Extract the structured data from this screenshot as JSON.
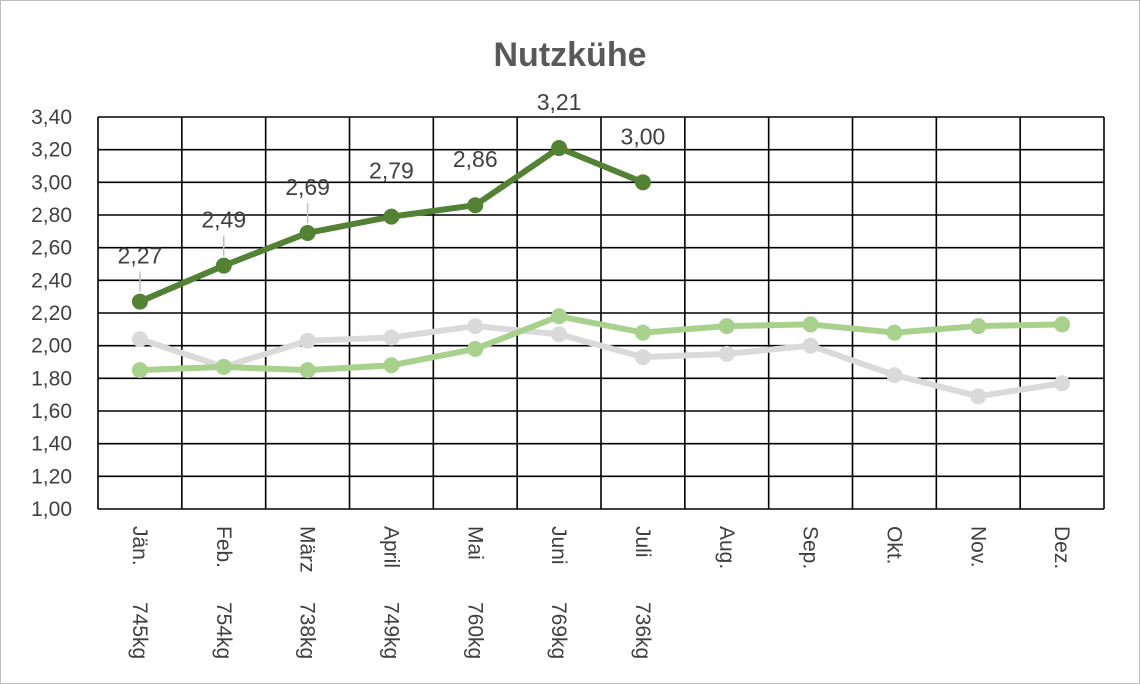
{
  "chart_data": {
    "type": "line",
    "title": "Nutzkühe",
    "xlabel": "",
    "ylabel": "",
    "ylim": [
      1.0,
      3.4
    ],
    "ytick_step": 0.2,
    "ytick_labels": [
      "1,00",
      "1,20",
      "1,40",
      "1,60",
      "1,80",
      "2,00",
      "2,20",
      "2,40",
      "2,60",
      "2,80",
      "3,00",
      "3,20",
      "3,40"
    ],
    "grid": true,
    "legend": "none",
    "categories": [
      {
        "month": "Jän.",
        "weight": "745kg"
      },
      {
        "month": "Feb.",
        "weight": "754kg"
      },
      {
        "month": "März",
        "weight": "738kg"
      },
      {
        "month": "April",
        "weight": "749kg"
      },
      {
        "month": "Mai",
        "weight": "760kg"
      },
      {
        "month": "Juni",
        "weight": "769kg"
      },
      {
        "month": "Juli",
        "weight": "736kg"
      },
      {
        "month": "Aug.",
        "weight": ""
      },
      {
        "month": "Sep.",
        "weight": ""
      },
      {
        "month": "Okt.",
        "weight": ""
      },
      {
        "month": "Nov.",
        "weight": ""
      },
      {
        "month": "Dez.",
        "weight": ""
      }
    ],
    "series": [
      {
        "color": "#dadada",
        "values": [
          2.04,
          1.87,
          2.03,
          2.05,
          2.12,
          2.07,
          1.93,
          1.95,
          2.0,
          1.82,
          1.69,
          1.77
        ],
        "labels": null
      },
      {
        "color": "#a9d18e",
        "values": [
          1.85,
          1.87,
          1.85,
          1.88,
          1.98,
          2.18,
          2.08,
          2.12,
          2.13,
          2.08,
          2.12,
          2.13
        ],
        "labels": null
      },
      {
        "color": "#548235",
        "values": [
          2.27,
          2.49,
          2.69,
          2.79,
          2.86,
          3.21,
          3.0,
          null,
          null,
          null,
          null,
          null
        ],
        "labels": [
          "2,27",
          "2,49",
          "2,69",
          "2,79",
          "2,86",
          "3,21",
          "3,00",
          null,
          null,
          null,
          null,
          null
        ]
      }
    ]
  }
}
